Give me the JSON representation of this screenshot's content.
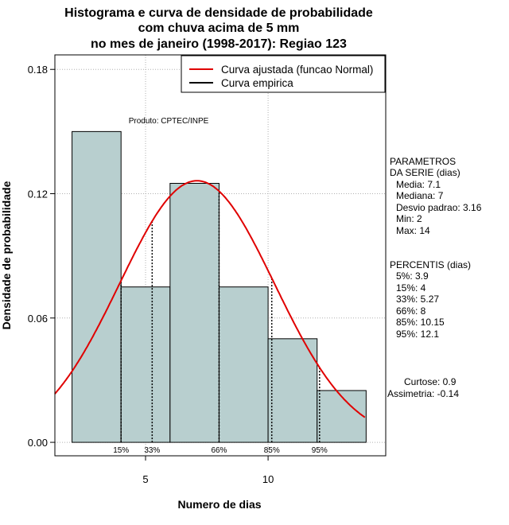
{
  "chart_data": {
    "type": "bar",
    "title_lines": [
      "Histograma e curva de densidade de probabilidade",
      "com chuva acima de 5 mm",
      "no mes de janeiro (1998-2017): Regiao 123"
    ],
    "xlabel": "Numero de dias",
    "ylabel": "Densidade de probabilidade",
    "xlim": [
      1.3,
      14.8
    ],
    "ylim": [
      -0.0065,
      0.187
    ],
    "x_ticks": [
      5,
      10
    ],
    "y_ticks": [
      "0.00",
      "0.06",
      "0.12",
      "0.18"
    ],
    "grid": true,
    "bins": [
      {
        "from": 2,
        "to": 4,
        "density": 0.15
      },
      {
        "from": 4,
        "to": 6,
        "density": 0.075
      },
      {
        "from": 6,
        "to": 8,
        "density": 0.125
      },
      {
        "from": 8,
        "to": 10,
        "density": 0.075
      },
      {
        "from": 10,
        "to": 12,
        "density": 0.05
      },
      {
        "from": 12,
        "to": 14,
        "density": 0.025
      }
    ],
    "normal_fit": {
      "name": "Curva ajustada (funcao Normal)",
      "mean": 7.1,
      "sd": 3.16,
      "color": "#e00000"
    },
    "empirical_curve": {
      "name": "Curva empirica",
      "color": "#000000"
    },
    "percentiles_marked": [
      {
        "label": "15%",
        "x": 4
      },
      {
        "label": "33%",
        "x": 5.27
      },
      {
        "label": "66%",
        "x": 8
      },
      {
        "label": "85%",
        "x": 10.15
      },
      {
        "label": "95%",
        "x": 12.1
      }
    ],
    "bar_color": "#b8cfcf",
    "source_note": "Produto: CPTEC/INPE"
  },
  "side_panel": {
    "params_title": [
      "PARAMETROS",
      "DA SERIE (dias)"
    ],
    "params": [
      "Media: 7.1",
      "Mediana: 7",
      "Desvio padrao: 3.16",
      "Min: 2",
      "Max: 14"
    ],
    "percentiles_title": "PERCENTIS (dias)",
    "percentiles": [
      "5%: 3.9",
      "15%: 4",
      "33%: 5.27",
      "66%: 8",
      "85%: 10.15",
      "95%: 12.1"
    ],
    "curtose": "Curtose: 0.9",
    "assimetria": "Assimetria: -0.14"
  }
}
